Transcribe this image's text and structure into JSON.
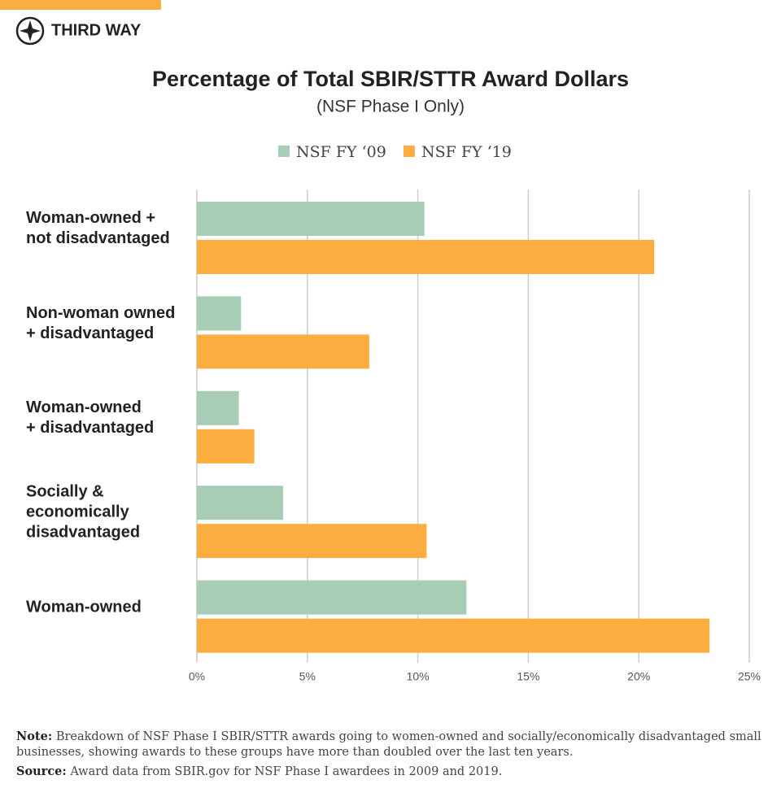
{
  "brand": "THIRD WAY",
  "chart_data": {
    "type": "hbar",
    "title": "Percentage of Total SBIR/STTR Award Dollars",
    "subtitle": "(NSF Phase I Only)",
    "categories": [
      "Woman-owned +\nnot disadvantaged",
      "Non-woman owned\n+ disadvantaged",
      "Woman-owned\n+ disadvantaged",
      "Socially &\neconomically\ndisadvantaged",
      "Woman-owned"
    ],
    "series": [
      {
        "name": "NSF FY ‘09",
        "color": "#a8cdb6",
        "values": [
          10.3,
          2.0,
          1.9,
          3.9,
          12.2
        ]
      },
      {
        "name": "NSF FY ‘19",
        "color": "#fbae3f",
        "values": [
          20.7,
          7.8,
          2.6,
          10.4,
          23.2
        ]
      }
    ],
    "xlim": [
      0,
      25
    ],
    "xticks": [
      {
        "value": 0,
        "label": "0%"
      },
      {
        "value": 5,
        "label": "5%"
      },
      {
        "value": 10,
        "label": "10%"
      },
      {
        "value": 15,
        "label": "15%"
      },
      {
        "value": 20,
        "label": "20%"
      },
      {
        "value": 25,
        "label": "25%"
      }
    ],
    "grid": true
  },
  "note": {
    "label": "Note:",
    "text": "Breakdown of NSF Phase I SBIR/STTR awards going to women-owned and socially/economically disadvantaged small businesses, showing awards to these groups have more than doubled over the last ten years."
  },
  "source": {
    "label": "Source:",
    "text": "Award data from SBIR.gov for NSF Phase I awardees in 2009 and 2019."
  }
}
